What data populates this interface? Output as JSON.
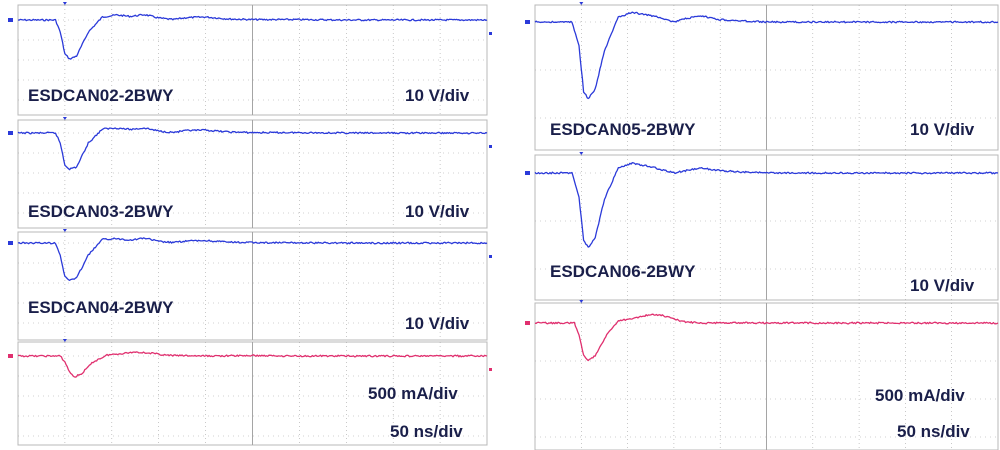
{
  "chart_data": [
    {
      "type": "line",
      "panel": "left-1",
      "kind": "voltage",
      "device": "ESDCAN02-2BWY",
      "scale": "10 V/div",
      "x_unit": "div",
      "y_unit": "div",
      "xlim": [
        0,
        10
      ],
      "ylim": [
        -2.1,
        0.6
      ],
      "x": [
        0,
        0.8,
        0.9,
        1.0,
        1.1,
        1.25,
        1.5,
        1.8,
        2.1,
        2.4,
        2.7,
        3.0,
        3.3,
        3.6,
        4.0,
        4.5,
        5.0,
        6.0,
        7.0,
        8.0,
        10.0
      ],
      "y": [
        0,
        0,
        -0.6,
        -1.7,
        -1.95,
        -1.8,
        -0.6,
        0.15,
        0.25,
        0.18,
        0.27,
        0.1,
        0.02,
        0.12,
        0.15,
        0.05,
        0.02,
        0.02,
        0.0,
        0.0,
        0.0
      ]
    },
    {
      "type": "line",
      "panel": "left-2",
      "kind": "voltage",
      "device": "ESDCAN03-2BWY",
      "scale": "10 V/div",
      "x_unit": "div",
      "y_unit": "div",
      "xlim": [
        0,
        10
      ],
      "ylim": [
        -2.1,
        0.6
      ],
      "x": [
        0,
        0.8,
        0.9,
        1.0,
        1.1,
        1.25,
        1.5,
        1.8,
        2.1,
        2.4,
        2.7,
        3.0,
        3.3,
        3.6,
        4.0,
        4.5,
        5.0,
        6.0,
        7.0,
        8.0,
        10.0
      ],
      "y": [
        0,
        0,
        -0.5,
        -1.6,
        -1.8,
        -1.7,
        -0.5,
        0.2,
        0.25,
        0.18,
        0.25,
        0.1,
        0.03,
        0.12,
        0.14,
        0.05,
        0.02,
        0.02,
        0.0,
        0.0,
        0.0
      ]
    },
    {
      "type": "line",
      "panel": "left-3",
      "kind": "voltage",
      "device": "ESDCAN04-2BWY",
      "scale": "10 V/div",
      "x_unit": "div",
      "y_unit": "div",
      "xlim": [
        0,
        10
      ],
      "ylim": [
        -2.1,
        0.6
      ],
      "x": [
        0,
        0.8,
        0.9,
        1.0,
        1.1,
        1.25,
        1.5,
        1.8,
        2.1,
        2.4,
        2.7,
        3.0,
        3.3,
        3.6,
        4.0,
        4.5,
        5.0,
        6.0,
        7.0,
        8.0,
        10.0
      ],
      "y": [
        0,
        0,
        -0.6,
        -1.7,
        -1.85,
        -1.75,
        -0.6,
        0.18,
        0.22,
        0.15,
        0.25,
        0.08,
        0.02,
        0.1,
        0.12,
        0.04,
        0.02,
        0.01,
        0.0,
        0.0,
        0.0
      ]
    },
    {
      "type": "line",
      "panel": "left-4",
      "kind": "current",
      "scale": "500 mA/div",
      "timebase": "50 ns/div",
      "x_unit": "div",
      "y_unit": "div",
      "xlim": [
        0,
        10
      ],
      "ylim": [
        -1.4,
        0.5
      ],
      "x": [
        0,
        0.9,
        1.0,
        1.1,
        1.2,
        1.35,
        1.6,
        1.9,
        2.2,
        2.5,
        2.8,
        3.2,
        4.0,
        5.0,
        6.0,
        8.0,
        10.0
      ],
      "y": [
        0,
        0,
        -0.3,
        -0.8,
        -1.05,
        -0.9,
        -0.3,
        0.05,
        0.12,
        0.2,
        0.15,
        0.03,
        0.0,
        0.02,
        0.0,
        0.0,
        0.0
      ]
    },
    {
      "type": "line",
      "panel": "right-1",
      "kind": "voltage",
      "device": "ESDCAN05-2BWY",
      "scale": "10 V/div",
      "x_unit": "div",
      "y_unit": "div",
      "xlim": [
        0,
        10
      ],
      "ylim": [
        -1.9,
        0.4
      ],
      "x": [
        0,
        0.8,
        0.95,
        1.05,
        1.15,
        1.3,
        1.5,
        1.8,
        2.1,
        2.4,
        2.7,
        3.0,
        3.3,
        3.6,
        4.0,
        4.5,
        5.0,
        6.0,
        7.0,
        8.0,
        10.0
      ],
      "y": [
        0,
        0,
        -0.5,
        -1.45,
        -1.6,
        -1.4,
        -0.6,
        0.1,
        0.2,
        0.15,
        0.1,
        0.0,
        0.08,
        0.12,
        0.05,
        0.02,
        0.0,
        0.0,
        0.0,
        0.0,
        0.0
      ]
    },
    {
      "type": "line",
      "panel": "right-2",
      "kind": "voltage",
      "device": "ESDCAN06-2BWY",
      "scale": "10 V/div",
      "x_unit": "div",
      "y_unit": "div",
      "xlim": [
        0,
        10
      ],
      "ylim": [
        -1.9,
        0.4
      ],
      "x": [
        0,
        0.8,
        0.95,
        1.05,
        1.15,
        1.3,
        1.5,
        1.8,
        2.1,
        2.4,
        2.7,
        3.0,
        3.3,
        3.6,
        4.0,
        4.5,
        5.0,
        6.0,
        7.0,
        8.0,
        10.0
      ],
      "y": [
        0,
        0,
        -0.5,
        -1.4,
        -1.55,
        -1.35,
        -0.55,
        0.12,
        0.2,
        0.15,
        0.08,
        0.0,
        0.06,
        0.1,
        0.05,
        0.02,
        0.0,
        0.0,
        0.0,
        0.0,
        0.0
      ]
    },
    {
      "type": "line",
      "panel": "right-3",
      "kind": "current",
      "scale": "500 mA/div",
      "timebase": "50 ns/div",
      "x_unit": "div",
      "y_unit": "div",
      "xlim": [
        0,
        10
      ],
      "ylim": [
        -1.3,
        0.5
      ],
      "x": [
        0,
        0.85,
        0.95,
        1.05,
        1.15,
        1.3,
        1.55,
        1.8,
        2.1,
        2.4,
        2.7,
        3.0,
        3.3,
        3.7,
        4.2,
        5.0,
        6.0,
        8.0,
        10.0
      ],
      "y": [
        0,
        0,
        -0.3,
        -0.85,
        -1.0,
        -0.85,
        -0.3,
        0.05,
        0.12,
        0.2,
        0.22,
        0.1,
        0.02,
        0.0,
        0.01,
        0.0,
        0.0,
        0.0,
        0.0
      ]
    }
  ],
  "colors": {
    "voltage": "#2b3ad9",
    "current": "#e0306f",
    "grid": "#a5a5a5",
    "label": "#1a1f4a"
  }
}
